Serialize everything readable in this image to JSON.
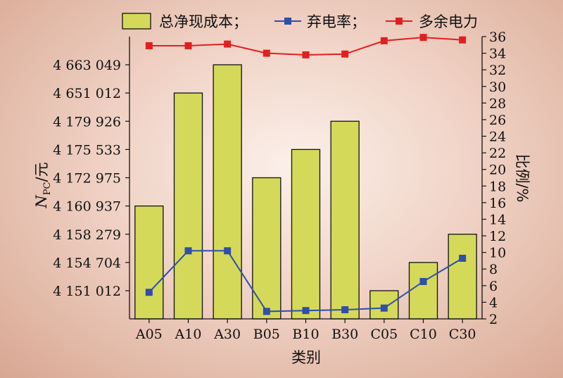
{
  "chart_data": {
    "type": "bar",
    "categories": [
      "A05",
      "A10",
      "A30",
      "B05",
      "B10",
      "B30",
      "C05",
      "C10",
      "C30"
    ],
    "xlabel": "类别",
    "ylabel": "N",
    "ylabel_sub": "PC",
    "ylabel_unit": "/元",
    "y2label": "比例/%",
    "left_ticks": [
      "4 151 012",
      "4 154 704",
      "4 158 279",
      "4 160 937",
      "4 172 975",
      "4 175 533",
      "4 179 926",
      "4 651 012",
      "4 663 049"
    ],
    "y2lim": [
      2,
      36
    ],
    "y2ticks": [
      2,
      4,
      6,
      8,
      10,
      12,
      14,
      16,
      18,
      20,
      22,
      24,
      26,
      28,
      30,
      32,
      34,
      36
    ],
    "legend_position": "top",
    "series": [
      {
        "name": "总净现成本；",
        "type": "bar",
        "axis": "left",
        "color": "#d4d95a",
        "values": [
          4160937,
          4651012,
          4663049,
          4172975,
          4175533,
          4179926,
          4151012,
          4154704,
          4158279
        ]
      },
      {
        "name": "弃电率；",
        "type": "line",
        "axis": "right",
        "color": "#2f4fa8",
        "values": [
          5.2,
          10.2,
          10.2,
          2.9,
          3.0,
          3.1,
          3.3,
          6.5,
          9.3
        ]
      },
      {
        "name": "多余电力",
        "type": "line",
        "axis": "right",
        "color": "#e02020",
        "values": [
          34.9,
          34.9,
          35.1,
          34.0,
          33.8,
          33.9,
          35.5,
          35.9,
          35.6
        ]
      }
    ]
  }
}
